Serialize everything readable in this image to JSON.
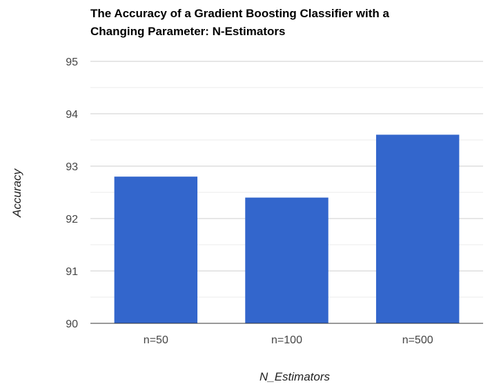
{
  "chart_data": {
    "type": "bar",
    "title_lines": [
      "The Accuracy of a Gradient Boosting Classifier with a",
      "Changing Parameter: N-Estimators"
    ],
    "xlabel": "N_Estimators",
    "ylabel": "Accuracy",
    "categories": [
      "n=50",
      "n=100",
      "n=500"
    ],
    "series": [
      {
        "values": [
          92.8,
          92.4,
          93.6
        ]
      }
    ],
    "ylim": [
      90,
      95
    ],
    "yticks": [
      "90",
      "91",
      "92",
      "93",
      "94",
      "95"
    ],
    "yminor_step": 0.5,
    "grid": true,
    "legend": "none",
    "bar_color": "#3366cc",
    "grid_color": "#cccccc",
    "minor_grid_color": "#ebebeb"
  }
}
